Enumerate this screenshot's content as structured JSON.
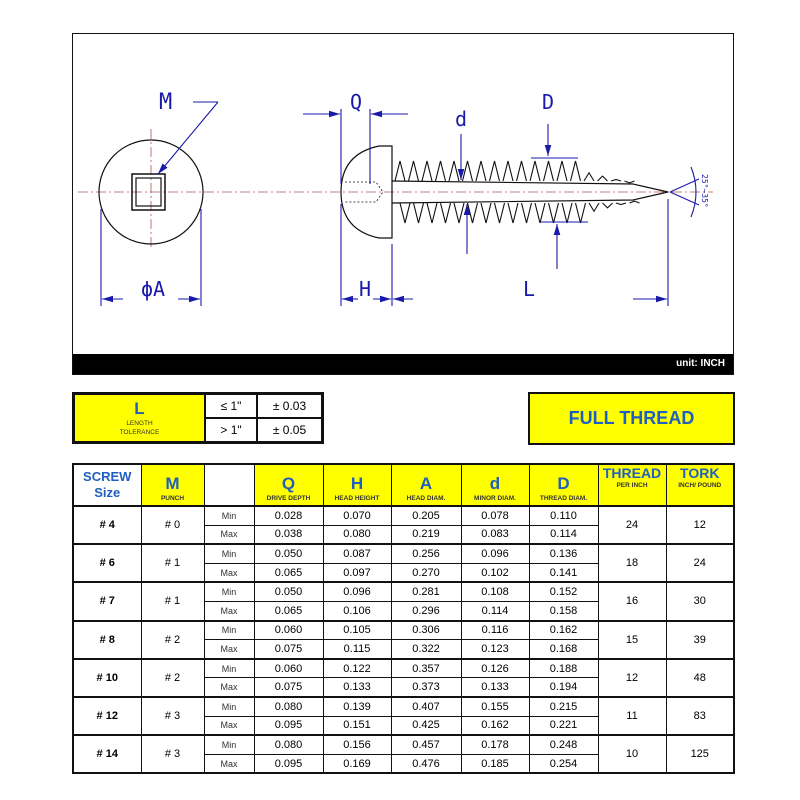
{
  "drawing": {
    "labels": {
      "M": "M",
      "Q": "Q",
      "d": "d",
      "D": "D",
      "A": "ϕA",
      "H": "H",
      "L": "L",
      "angle": "25°~35°"
    },
    "unit": "unit: INCH"
  },
  "tolerance": {
    "label": "L",
    "sublabel": "LENGTH TOLERANCE",
    "rows": [
      {
        "cond": "≤ 1\"",
        "value": "± 0.03"
      },
      {
        "cond": "> 1\"",
        "value": "± 0.05"
      }
    ]
  },
  "thread_type": "FULL THREAD",
  "table": {
    "headers": [
      {
        "main": "SCREW Size",
        "sub": ""
      },
      {
        "main": "M",
        "sub": "PUNCH"
      },
      {
        "main": "",
        "sub": ""
      },
      {
        "main": "Q",
        "sub": "DRIVE DEPTH"
      },
      {
        "main": "H",
        "sub": "HEAD HEIGHT"
      },
      {
        "main": "A",
        "sub": "HEAD DIAM."
      },
      {
        "main": "d",
        "sub": "MINOR DIAM."
      },
      {
        "main": "D",
        "sub": "THREAD DIAM."
      },
      {
        "main": "THREAD",
        "sub": "PER INCH"
      },
      {
        "main": "TORK",
        "sub": "INCH/ POUND"
      }
    ],
    "min_label": "Min",
    "max_label": "Max",
    "rows": [
      {
        "size": "# 4",
        "punch": "# 0",
        "min": [
          "0.028",
          "0.070",
          "0.205",
          "0.078",
          "0.110"
        ],
        "max": [
          "0.038",
          "0.080",
          "0.219",
          "0.083",
          "0.114"
        ],
        "thread": "24",
        "tork": "12"
      },
      {
        "size": "# 6",
        "punch": "# 1",
        "min": [
          "0.050",
          "0.087",
          "0.256",
          "0.096",
          "0.136"
        ],
        "max": [
          "0.065",
          "0.097",
          "0.270",
          "0.102",
          "0.141"
        ],
        "thread": "18",
        "tork": "24"
      },
      {
        "size": "# 7",
        "punch": "# 1",
        "min": [
          "0.050",
          "0.096",
          "0.281",
          "0.108",
          "0.152"
        ],
        "max": [
          "0.065",
          "0.106",
          "0.296",
          "0.114",
          "0.158"
        ],
        "thread": "16",
        "tork": "30"
      },
      {
        "size": "# 8",
        "punch": "# 2",
        "min": [
          "0.060",
          "0.105",
          "0.306",
          "0.116",
          "0.162"
        ],
        "max": [
          "0.075",
          "0.115",
          "0.322",
          "0.123",
          "0.168"
        ],
        "thread": "15",
        "tork": "39"
      },
      {
        "size": "# 10",
        "punch": "# 2",
        "min": [
          "0.060",
          "0.122",
          "0.357",
          "0.126",
          "0.188"
        ],
        "max": [
          "0.075",
          "0.133",
          "0.373",
          "0.133",
          "0.194"
        ],
        "thread": "12",
        "tork": "48"
      },
      {
        "size": "# 12",
        "punch": "# 3",
        "min": [
          "0.080",
          "0.139",
          "0.407",
          "0.155",
          "0.215"
        ],
        "max": [
          "0.095",
          "0.151",
          "0.425",
          "0.162",
          "0.221"
        ],
        "thread": "11",
        "tork": "83"
      },
      {
        "size": "# 14",
        "punch": "# 3",
        "min": [
          "0.080",
          "0.156",
          "0.457",
          "0.178",
          "0.248"
        ],
        "max": [
          "0.095",
          "0.169",
          "0.476",
          "0.185",
          "0.254"
        ],
        "thread": "10",
        "tork": "125"
      }
    ]
  },
  "colors": {
    "highlight": "#ffff00",
    "heading_blue": "#1f5fbf",
    "dimension_blue": "#1a1aa8"
  }
}
